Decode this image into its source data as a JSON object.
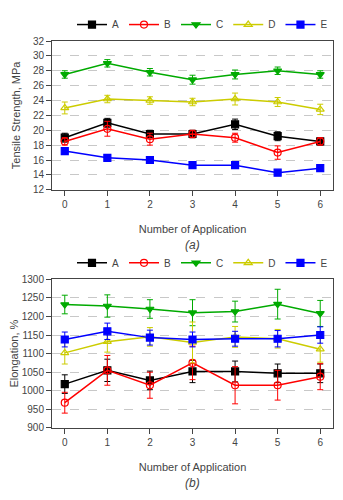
{
  "chart_data": [
    {
      "type": "line",
      "x_label": "Number of Application",
      "y_label": "Tensile Strength, MPa",
      "annotation": "(a)",
      "x": [
        0,
        1,
        2,
        3,
        4,
        5,
        6
      ],
      "xlim": [
        -0.3,
        6.3
      ],
      "xticks": [
        0,
        1,
        2,
        3,
        4,
        5,
        6
      ],
      "ylim": [
        12,
        32
      ],
      "yticks": [
        12,
        14,
        16,
        18,
        20,
        22,
        24,
        26,
        28,
        30,
        32
      ],
      "grid": "y",
      "legend": "upper right",
      "series": [
        {
          "name": "A",
          "color": "#000000",
          "marker": "square",
          "values": [
            19.0,
            21.0,
            19.5,
            19.5,
            20.8,
            19.2,
            18.5
          ],
          "error": [
            0.6,
            0.6,
            0.5,
            0.5,
            0.7,
            0.6,
            0.5
          ]
        },
        {
          "name": "B",
          "color": "#ff0000",
          "marker": "circle-open",
          "values": [
            18.5,
            20.2,
            18.8,
            19.5,
            19.0,
            17.0,
            18.5
          ],
          "error": [
            0.5,
            1.0,
            0.8,
            0.5,
            0.6,
            0.9,
            0.5
          ]
        },
        {
          "name": "C",
          "color": "#00aa00",
          "marker": "triangle-down",
          "values": [
            27.5,
            29.0,
            27.8,
            26.8,
            27.5,
            28.0,
            27.5
          ],
          "error": [
            0.5,
            0.5,
            0.5,
            0.6,
            0.6,
            0.5,
            0.5
          ]
        },
        {
          "name": "D",
          "color": "#cccc00",
          "marker": "triangle-up-open",
          "values": [
            23.0,
            24.2,
            24.0,
            23.8,
            24.2,
            23.8,
            22.8
          ],
          "error": [
            0.8,
            0.5,
            0.5,
            0.5,
            0.8,
            0.6,
            0.7
          ]
        },
        {
          "name": "E",
          "color": "#0000ff",
          "marker": "square",
          "values": [
            17.2,
            16.3,
            16.0,
            15.3,
            15.3,
            14.3,
            14.9
          ],
          "error": [
            0.3,
            0.4,
            0.3,
            0.3,
            0.3,
            0.3,
            0.4
          ]
        }
      ]
    },
    {
      "type": "line",
      "x_label": "Number of Application",
      "y_label": "Elongation, %",
      "annotation": "(b)",
      "x": [
        0,
        1,
        2,
        3,
        4,
        5,
        6
      ],
      "xlim": [
        -0.3,
        6.3
      ],
      "xticks": [
        0,
        1,
        2,
        3,
        4,
        5,
        6
      ],
      "ylim": [
        900,
        1300
      ],
      "yticks": [
        900,
        950,
        1000,
        1050,
        1100,
        1150,
        1200,
        1250,
        1300
      ],
      "grid": "y",
      "legend": "upper right",
      "series": [
        {
          "name": "A",
          "color": "#000000",
          "marker": "square",
          "values": [
            1018,
            1055,
            1028,
            1052,
            1052,
            1047,
            1047
          ],
          "error": [
            25,
            30,
            25,
            30,
            28,
            25,
            25
          ]
        },
        {
          "name": "B",
          "color": "#ff0000",
          "marker": "circle-open",
          "values": [
            968,
            1055,
            1015,
            1075,
            1015,
            1015,
            1038
          ],
          "error": [
            28,
            40,
            35,
            45,
            50,
            40,
            35
          ]
        },
        {
          "name": "C",
          "color": "#00aa00",
          "marker": "triangle-down",
          "values": [
            1232,
            1228,
            1220,
            1210,
            1213,
            1233,
            1208
          ],
          "error": [
            25,
            30,
            25,
            35,
            28,
            40,
            35
          ]
        },
        {
          "name": "D",
          "color": "#cccc00",
          "marker": "triangle-up-open",
          "values": [
            1102,
            1132,
            1145,
            1130,
            1145,
            1140,
            1112
          ],
          "error": [
            30,
            28,
            25,
            55,
            28,
            25,
            35
          ]
        },
        {
          "name": "E",
          "color": "#0000ff",
          "marker": "square",
          "values": [
            1138,
            1160,
            1143,
            1138,
            1140,
            1140,
            1150
          ],
          "error": [
            20,
            22,
            20,
            20,
            20,
            22,
            22
          ]
        }
      ]
    }
  ]
}
